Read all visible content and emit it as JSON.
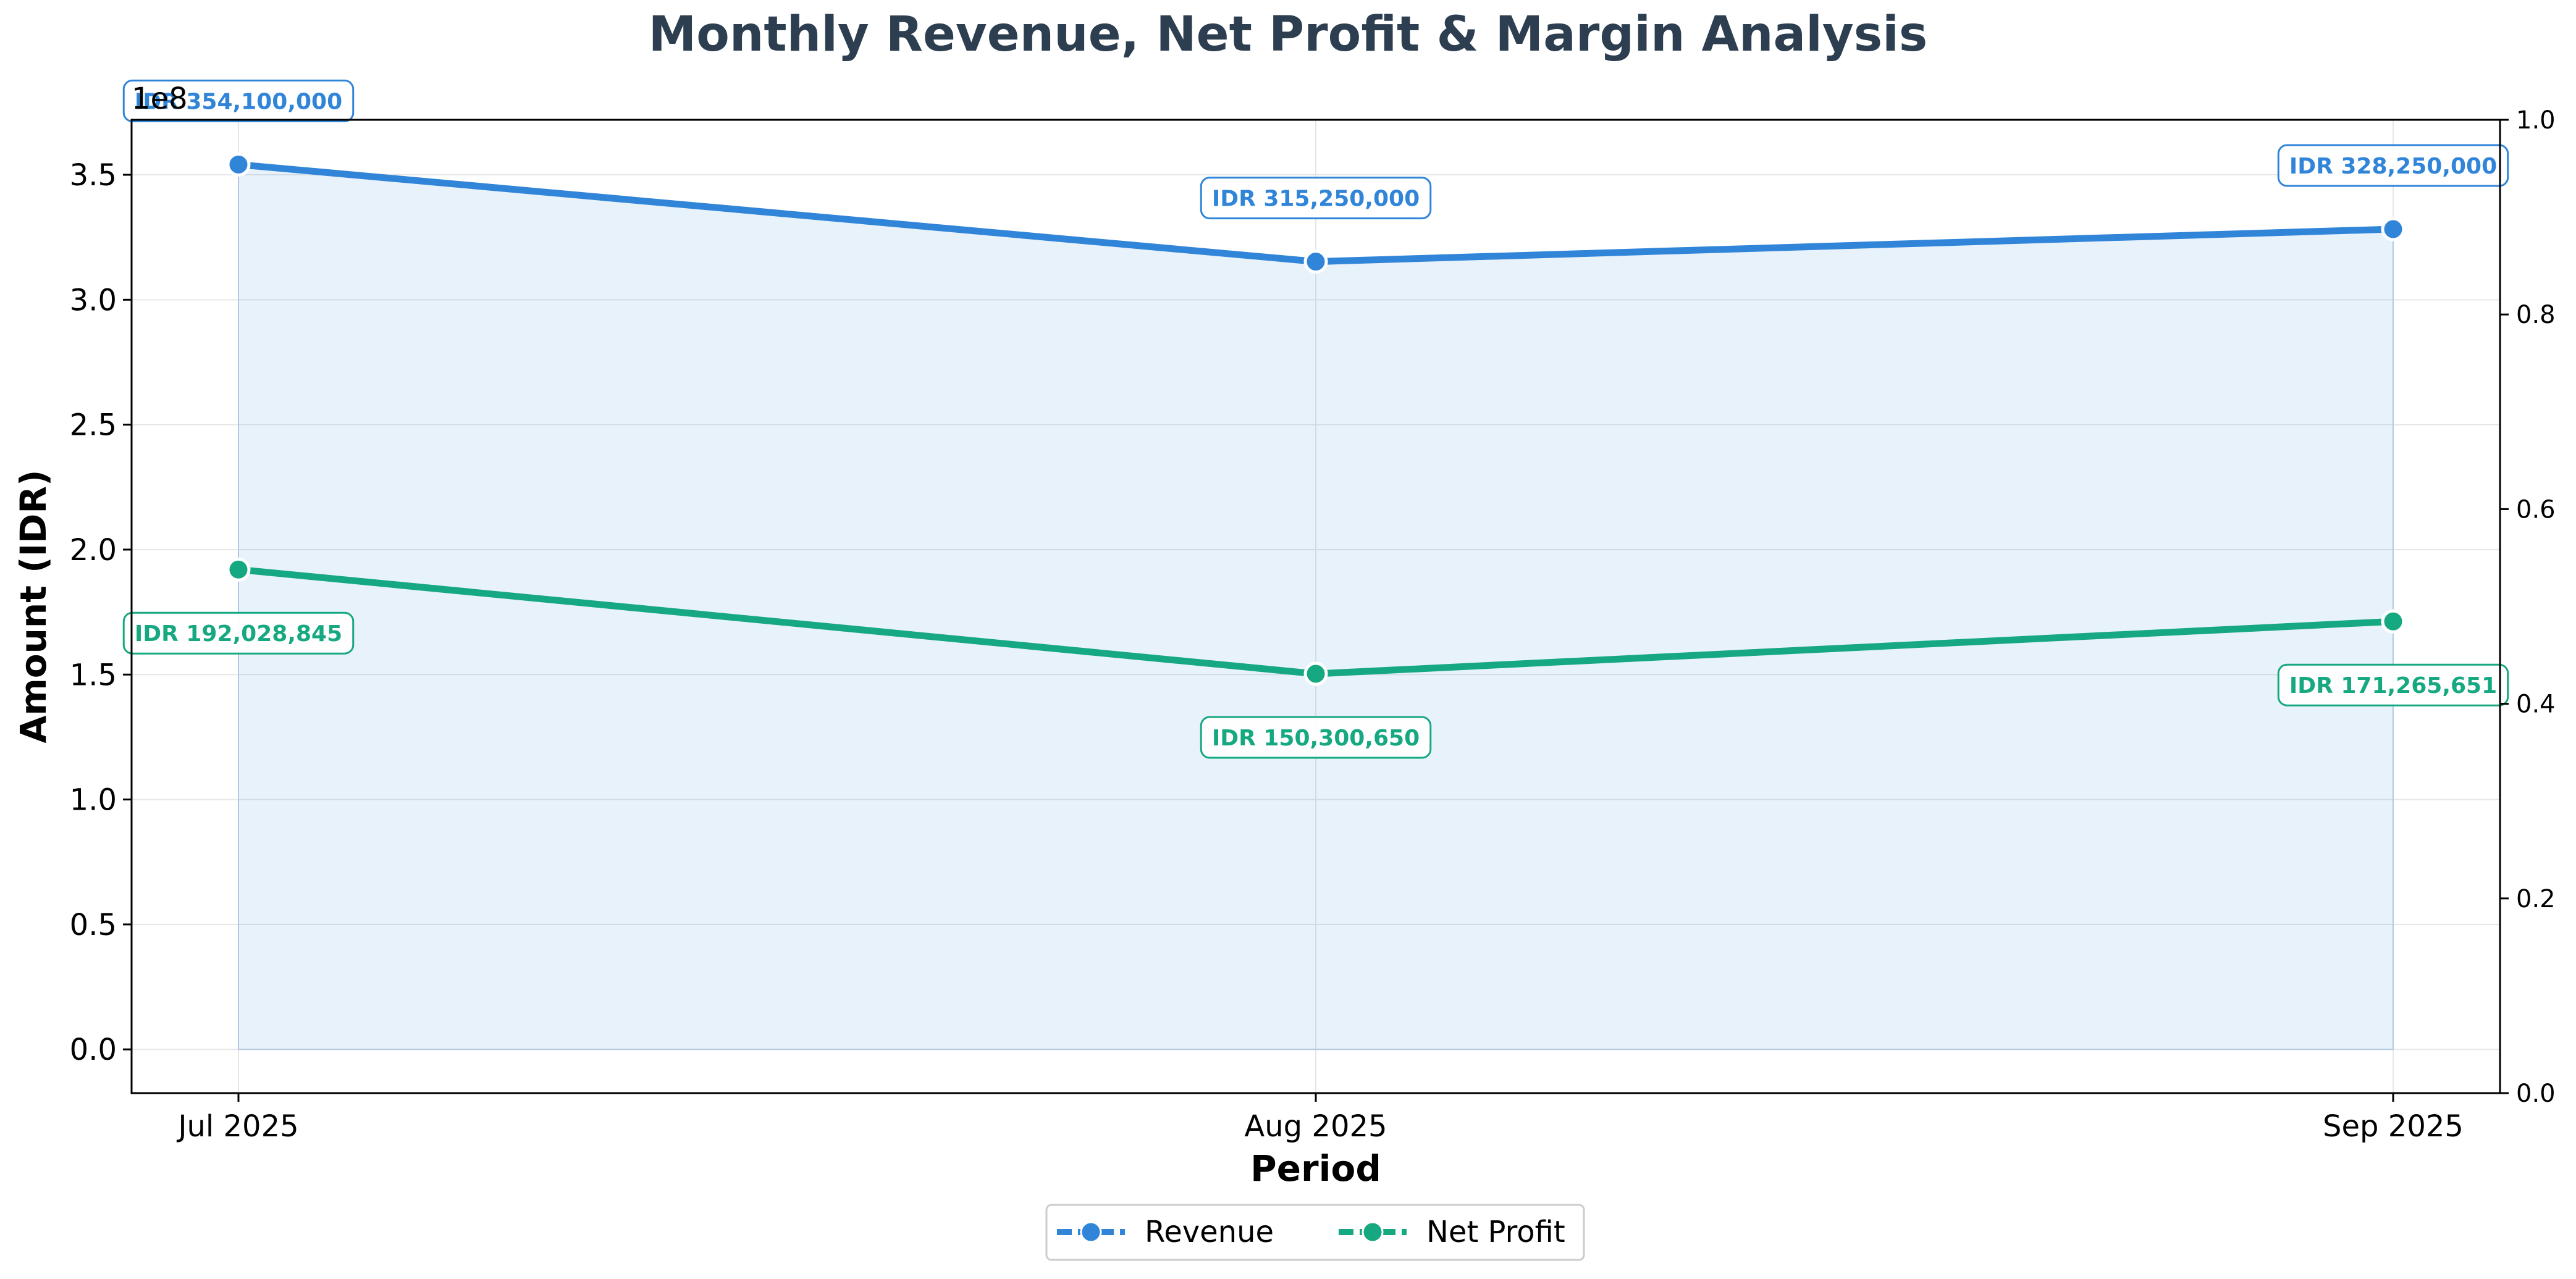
{
  "chart_data": {
    "type": "line",
    "title": "Monthly Revenue, Net Profit & Margin Analysis",
    "xlabel": "Period",
    "ylabel": "Amount (IDR)",
    "categories": [
      "Jul 2025",
      "Aug 2025",
      "Sep 2025"
    ],
    "ylim": [
      -0.175,
      3.72
    ],
    "y_ticks": [
      "0.0",
      "0.5",
      "1.0",
      "1.5",
      "2.0",
      "2.5",
      "3.0",
      "3.5"
    ],
    "y_offset_text": "1e8",
    "y2lim": [
      0,
      1
    ],
    "y2_ticks": [
      "0.0",
      "0.2",
      "0.4",
      "0.6",
      "0.8",
      "1.0"
    ],
    "grid": true,
    "legend_position": "bottom-center",
    "series": [
      {
        "name": "Revenue",
        "color": "#3085d9",
        "fill_area": true,
        "values": [
          3.541,
          3.1525,
          3.2825
        ],
        "data_labels": [
          "IDR 354,100,000",
          "IDR 315,250,000",
          "IDR 328,250,000"
        ]
      },
      {
        "name": "Net Profit",
        "color": "#16a880",
        "fill_area": false,
        "values": [
          1.92028845,
          1.5030065,
          1.71265651
        ],
        "data_labels": [
          "IDR 192,028,845",
          "IDR 150,300,650",
          "IDR 171,265,651"
        ]
      }
    ]
  }
}
